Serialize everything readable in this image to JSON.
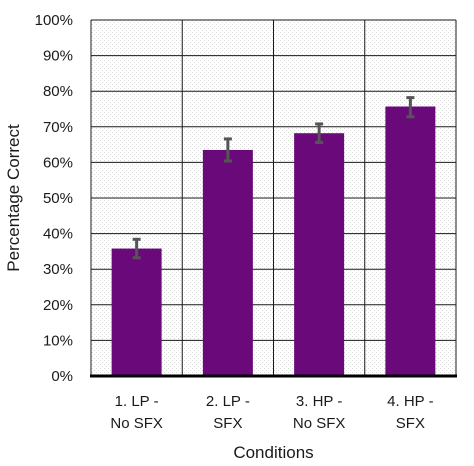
{
  "chart_data": {
    "type": "bar",
    "title": "",
    "xlabel": "Conditions",
    "ylabel": "Percentage Correct",
    "categories": [
      [
        "1. LP  -",
        "No SFX"
      ],
      [
        "2. LP -",
        "SFX"
      ],
      [
        "3. HP  -",
        "No SFX"
      ],
      [
        "4. HP  -",
        "SFX"
      ]
    ],
    "values": [
      35.8,
      63.5,
      68.2,
      75.7
    ],
    "error_bars": [
      [
        33.2,
        38.4
      ],
      [
        60.4,
        66.6
      ],
      [
        65.6,
        70.8
      ],
      [
        72.8,
        78.2
      ]
    ],
    "ylim": [
      0,
      100
    ],
    "yticks": [
      0,
      10,
      20,
      30,
      40,
      50,
      60,
      70,
      80,
      90,
      100
    ],
    "ytick_labels": [
      "0%",
      "10%",
      "20%",
      "30%",
      "40%",
      "50%",
      "60%",
      "70%",
      "80%",
      "90%",
      "100%"
    ],
    "grid": true,
    "legend": "none",
    "bar_color": "#6a0a7a",
    "error_bar_color": "#555555"
  }
}
